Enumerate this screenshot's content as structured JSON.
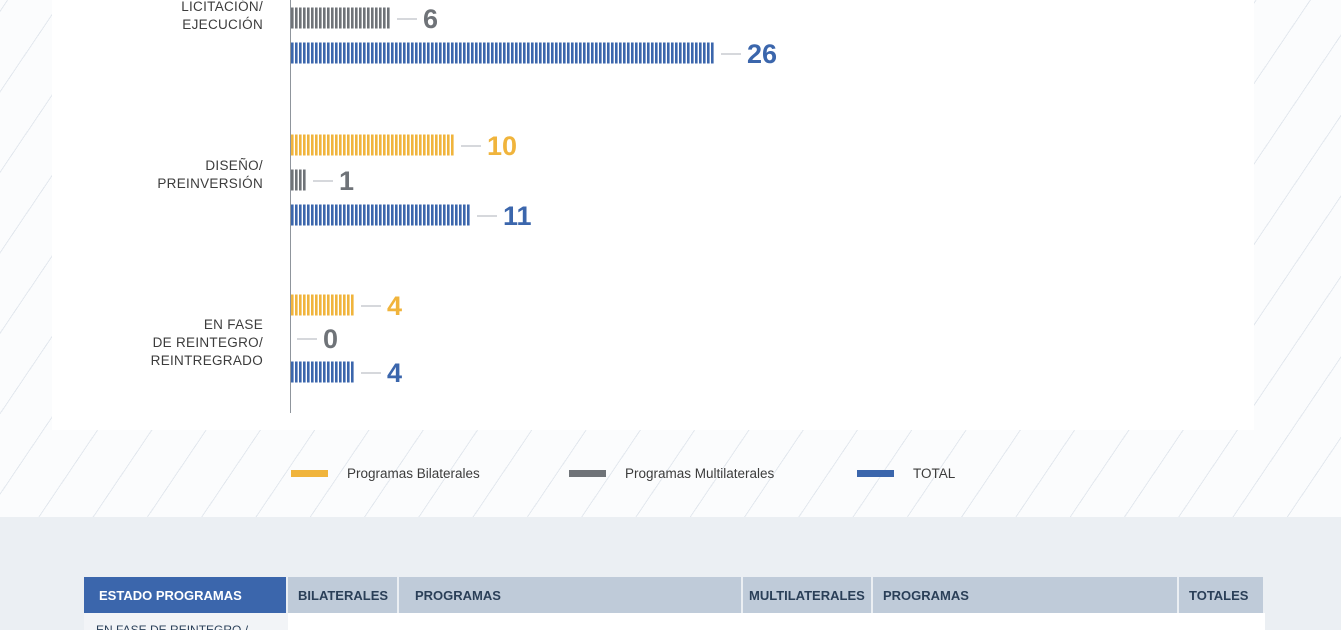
{
  "chart_data": {
    "type": "bar",
    "orientation": "horizontal",
    "categories": [
      [
        "LICITACIÓN/",
        "EJECUCIÓN"
      ],
      [
        "DISEÑO/",
        "PREINVERSIÓN"
      ],
      [
        "EN FASE",
        "DE REINTEGRO/",
        "REINTREGRADO"
      ]
    ],
    "series": [
      {
        "name": "Programas Bilaterales",
        "color": "#f0b43c",
        "values": [
          null,
          10,
          4
        ]
      },
      {
        "name": "Programas Multilaterales",
        "color": "#6f7378",
        "values": [
          6,
          1,
          0
        ]
      },
      {
        "name": "TOTAL",
        "color": "#3b66ac",
        "values": [
          26,
          11,
          4
        ]
      }
    ],
    "legend_position": "bottom"
  },
  "table": {
    "headers": [
      "ESTADO PROGRAMAS",
      "BILATERALES",
      "PROGRAMAS",
      "MULTILATERALES",
      "PROGRAMAS",
      "TOTALES"
    ],
    "first_row_label": "EN FASE DE REINTEGRO /"
  }
}
